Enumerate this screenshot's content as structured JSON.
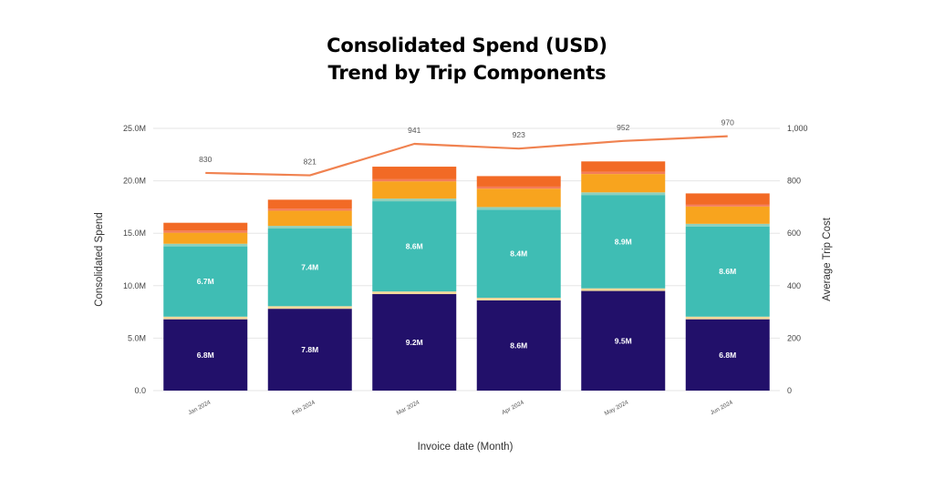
{
  "title_line1": "Consolidated Spend (USD)",
  "title_line2": "Trend by Trip Components",
  "chart_data": {
    "type": "bar",
    "stacked": true,
    "title": "Consolidated Spend (USD) Trend by Trip Components",
    "xlabel": "Invoice date (Month)",
    "ylabel": "Consolidated Spend",
    "y2label": "Average Trip Cost",
    "categories": [
      "Jan 2024",
      "Feb 2024",
      "Mar 2024",
      "Apr 2024",
      "May 2024",
      "Jun 2024"
    ],
    "ylim": [
      0,
      25
    ],
    "y_ticks": [
      "0.0",
      "5.0M",
      "10.0M",
      "15.0M",
      "20.0M",
      "25.0M"
    ],
    "y2lim": [
      0,
      1000
    ],
    "y2_ticks": [
      "0",
      "200",
      "400",
      "600",
      "800",
      "1,000"
    ],
    "grid": true,
    "series": [
      {
        "color": "#22106a",
        "values": [
          6.8,
          7.8,
          9.2,
          8.6,
          9.5,
          6.8
        ],
        "labels": [
          "6.8M",
          "7.8M",
          "9.2M",
          "8.6M",
          "9.5M",
          "6.8M"
        ]
      },
      {
        "color": "#f2d79a",
        "values": [
          0.25,
          0.25,
          0.25,
          0.25,
          0.25,
          0.25
        ]
      },
      {
        "color": "#3fbdb4",
        "values": [
          6.7,
          7.4,
          8.6,
          8.4,
          8.9,
          8.6
        ],
        "labels": [
          "6.7M",
          "7.4M",
          "8.6M",
          "8.4M",
          "8.9M",
          "8.6M"
        ]
      },
      {
        "color": "#8cd0bd",
        "values": [
          0.25,
          0.25,
          0.25,
          0.25,
          0.25,
          0.25
        ]
      },
      {
        "color": "#f8a41e",
        "values": [
          1.05,
          1.45,
          1.65,
          1.75,
          1.75,
          1.65
        ]
      },
      {
        "color": "#f47c5a",
        "values": [
          0.2,
          0.2,
          0.2,
          0.2,
          0.2,
          0.2
        ]
      },
      {
        "color": "#f26a25",
        "values": [
          0.75,
          0.85,
          1.2,
          1.0,
          1.0,
          1.05
        ]
      }
    ],
    "line": {
      "axis": "right",
      "color": "#f08250",
      "values": [
        830,
        821,
        941,
        923,
        952,
        970
      ],
      "labels": [
        "830",
        "821",
        "941",
        "923",
        "952",
        "970"
      ]
    }
  }
}
